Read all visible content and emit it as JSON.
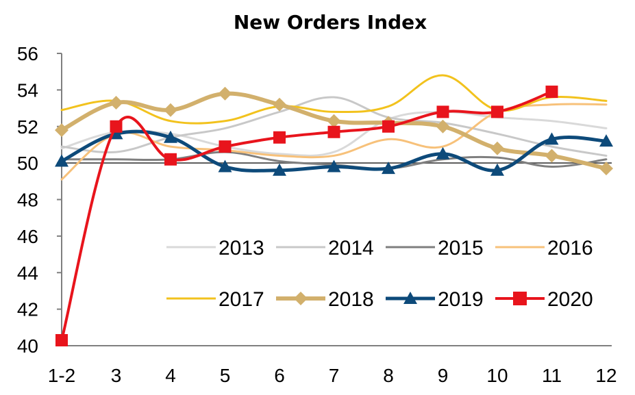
{
  "chart_data": {
    "type": "line",
    "title": "New Orders Index",
    "xlabel": "",
    "ylabel": "",
    "categories": [
      "1-2",
      "3",
      "4",
      "5",
      "6",
      "7",
      "8",
      "9",
      "10",
      "11",
      "12"
    ],
    "ylim": [
      40,
      56
    ],
    "yticks": [
      40,
      42,
      44,
      46,
      48,
      50,
      52,
      54,
      56
    ],
    "reference_line": 50,
    "grid": false,
    "legend_position": "lower-right",
    "series": [
      {
        "name": "2013",
        "color": "#d9d9d9",
        "marker": "none",
        "width": 3,
        "smooth": true,
        "values": [
          50.8,
          51.7,
          51.6,
          50.9,
          50.5,
          50.6,
          52.4,
          52.8,
          52.5,
          52.3,
          51.9
        ]
      },
      {
        "name": "2014",
        "color": "#c8c8c8",
        "marker": "none",
        "width": 3,
        "smooth": true,
        "values": [
          50.9,
          50.6,
          51.4,
          51.9,
          52.8,
          53.6,
          52.5,
          52.2,
          51.6,
          50.9,
          50.4
        ]
      },
      {
        "name": "2015",
        "color": "#7f7f7f",
        "marker": "none",
        "width": 3,
        "smooth": true,
        "values": [
          50.2,
          50.2,
          50.2,
          50.6,
          50.1,
          49.9,
          49.7,
          50.2,
          50.3,
          49.8,
          50.2
        ]
      },
      {
        "name": "2016",
        "color": "#f7c17a",
        "marker": "none",
        "width": 3,
        "smooth": true,
        "values": [
          49.1,
          51.6,
          50.9,
          50.7,
          50.4,
          50.4,
          51.3,
          50.9,
          52.8,
          53.2,
          53.2
        ]
      },
      {
        "name": "2017",
        "color": "#f2c21d",
        "marker": "none",
        "width": 3,
        "smooth": true,
        "values": [
          52.9,
          53.4,
          52.3,
          52.3,
          53.1,
          52.8,
          53.1,
          54.8,
          52.9,
          53.6,
          53.4
        ]
      },
      {
        "name": "2018",
        "color": "#d2b06c",
        "marker": "diamond",
        "width": 6,
        "smooth": true,
        "values": [
          51.8,
          53.3,
          52.9,
          53.8,
          53.2,
          52.3,
          52.2,
          52.0,
          50.8,
          50.4,
          49.7
        ]
      },
      {
        "name": "2019",
        "color": "#0d4a7a",
        "marker": "triangle",
        "width": 5,
        "smooth": true,
        "values": [
          50.1,
          51.6,
          51.4,
          49.8,
          49.6,
          49.8,
          49.7,
          50.5,
          49.6,
          51.3,
          51.2
        ]
      },
      {
        "name": "2020",
        "color": "#e8141c",
        "marker": "square",
        "width": 4,
        "smooth": true,
        "values": [
          40.3,
          52.0,
          50.2,
          50.9,
          51.4,
          51.7,
          52.0,
          52.8,
          52.8,
          53.9,
          null
        ]
      }
    ]
  }
}
